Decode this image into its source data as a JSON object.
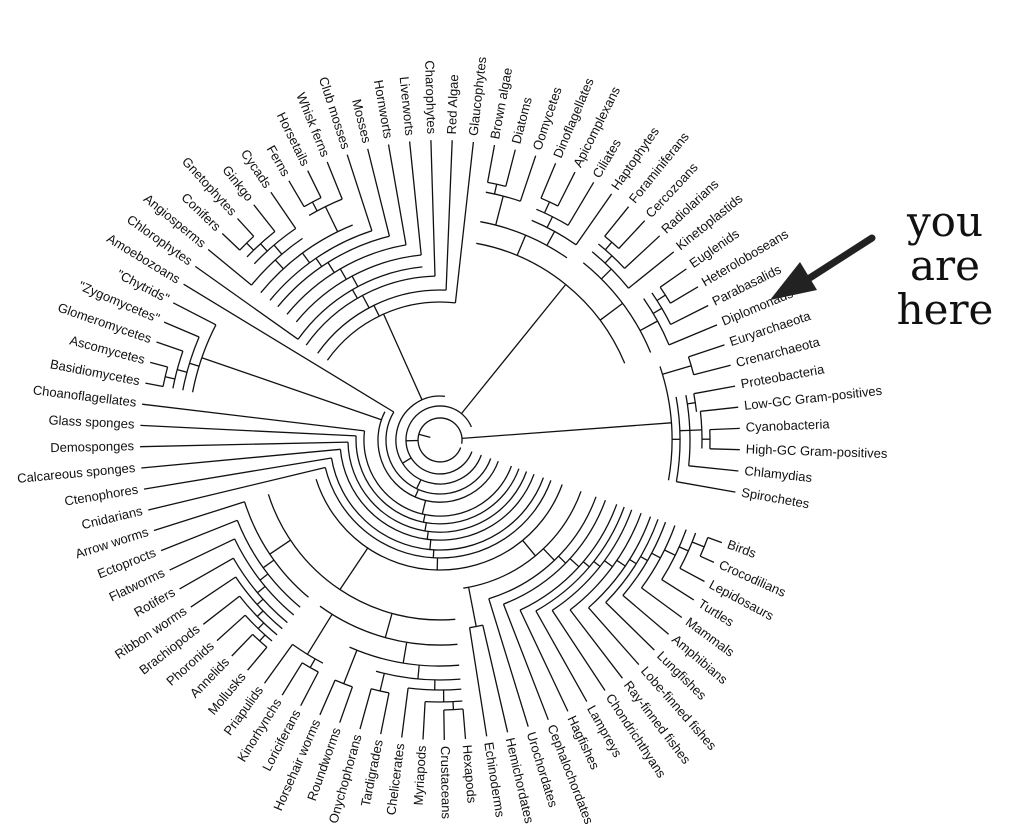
{
  "annotation": {
    "line1": "you",
    "line2": "are",
    "line3": "here"
  },
  "leaves": [
    "Birds",
    "Crocodilians",
    "Lepidosaurs",
    "Turtles",
    "Mammals",
    "Amphibians",
    "Lungfishes",
    "Lobe-finned fishes",
    "Ray-finned fishes",
    "Chondrichthyans",
    "Lampreys",
    "Hagfishes",
    "Cephalochordates",
    "Urochordates",
    "Hemichordates",
    "Echinoderms",
    "Hexapods",
    "Crustaceans",
    "Myriapods",
    "Chelicerates",
    "Tardigrades",
    "Onychophorans",
    "Roundworms",
    "Horsehair worms",
    "Loriciferans",
    "Kinorhynchs",
    "Priapulids",
    "Mollusks",
    "Annelids",
    "Phoronids",
    "Brachiopods",
    "Ribbon worms",
    "Rotifers",
    "Flatworms",
    "Ectoprocts",
    "Arrow worms",
    "Cnidarians",
    "Ctenophores",
    "Calcareous sponges",
    "Demosponges",
    "Glass sponges",
    "Choanoflagellates",
    "Basidiomycetes",
    "Ascomycetes",
    "Glomeromycetes",
    "\"Zygomycetes\"",
    "\"Chytrids\"",
    "Amoebozoans",
    "Chlorophytes",
    "Angiosperms",
    "Conifers",
    "Gnetophytes",
    "Ginkgo",
    "Cycads",
    "Ferns",
    "Horsetails",
    "Whisk ferns",
    "Club mosses",
    "Mosses",
    "Hornworts",
    "Liverworts",
    "Charophytes",
    "Red Algae",
    "Glaucophytes",
    "Brown algae",
    "Diatoms",
    "Oomycetes",
    "Dinoflagellates",
    "Apicomplexans",
    "Ciliates",
    "Haptophytes",
    "Foraminiferans",
    "Cercozoans",
    "Radiolarians",
    "Kinetoplastids",
    "Euglenids",
    "Heteroloboseans",
    "Parabasalids",
    "Diplomonads",
    "Euryarchaeota",
    "Crenarchaeota",
    "Proteobacteria",
    "Low-GC Gram-positives",
    "Cyanobacteria",
    "High-GC Gram-positives",
    "Chlamydias",
    "Spirochetes"
  ],
  "groups": {
    "Birds": "Crocodilians",
    "Lepidosaurs": null
  }
}
